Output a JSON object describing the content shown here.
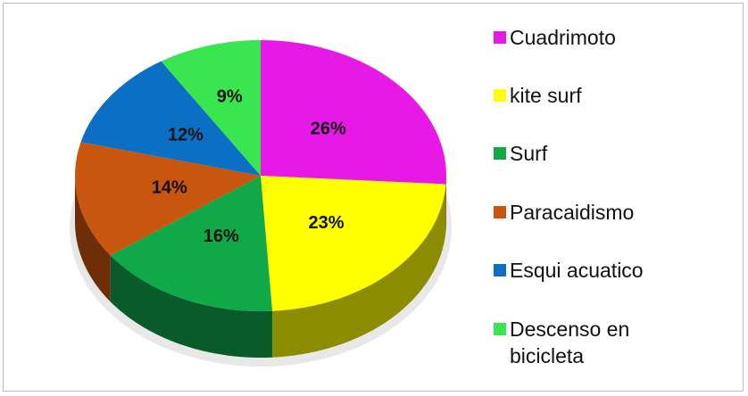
{
  "chart_data": {
    "type": "pie",
    "categories": [
      "Cuadrimoto",
      "kite surf",
      "Surf",
      "Paracaidismo",
      "Esqui acuatico",
      "Descenso en bicicleta"
    ],
    "values": [
      26,
      23,
      16,
      14,
      12,
      9
    ],
    "value_labels": [
      "26%",
      "23%",
      "16%",
      "14%",
      "12%",
      "9%"
    ],
    "colors": [
      "#e619e6",
      "#ffff00",
      "#11a84a",
      "#c8560f",
      "#0b6fc4",
      "#3ae64f"
    ],
    "legend": "right"
  }
}
